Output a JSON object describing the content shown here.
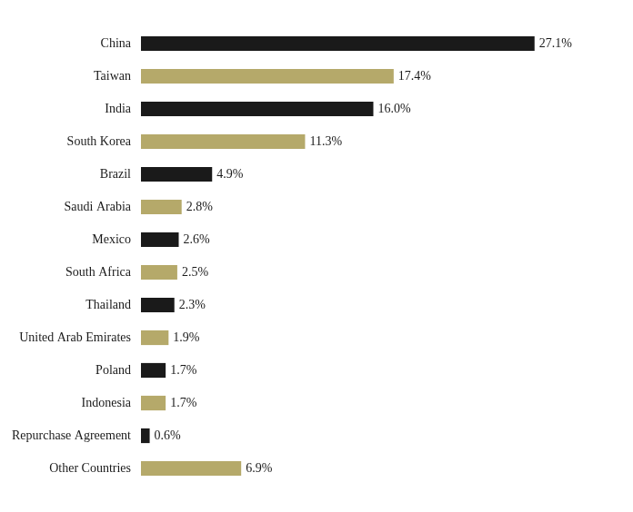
{
  "chart_data": {
    "type": "bar",
    "orientation": "horizontal",
    "categories": [
      "China",
      "Taiwan",
      "India",
      "South Korea",
      "Brazil",
      "Saudi Arabia",
      "Mexico",
      "South Africa",
      "Thailand",
      "United Arab Emirates",
      "Poland",
      "Indonesia",
      "Repurchase Agreement",
      "Other Countries"
    ],
    "values": [
      27.1,
      17.4,
      16.0,
      11.3,
      4.9,
      2.8,
      2.6,
      2.5,
      2.3,
      1.9,
      1.7,
      1.7,
      0.6,
      6.9
    ],
    "value_labels": [
      "27.1%",
      "17.4%",
      "16.0%",
      "11.3%",
      "4.9%",
      "2.8%",
      "2.6%",
      "2.5%",
      "2.3%",
      "1.9%",
      "1.7%",
      "1.7%",
      "0.6%",
      "6.9%"
    ],
    "colors": [
      "#1a1a1a",
      "#b5a96a",
      "#1a1a1a",
      "#b5a96a",
      "#1a1a1a",
      "#b5a96a",
      "#1a1a1a",
      "#b5a96a",
      "#1a1a1a",
      "#b5a96a",
      "#1a1a1a",
      "#b5a96a",
      "#1a1a1a",
      "#b5a96a"
    ],
    "xlim": [
      0,
      32
    ],
    "data_labels": true,
    "tick_labels": "y",
    "grid": false
  }
}
